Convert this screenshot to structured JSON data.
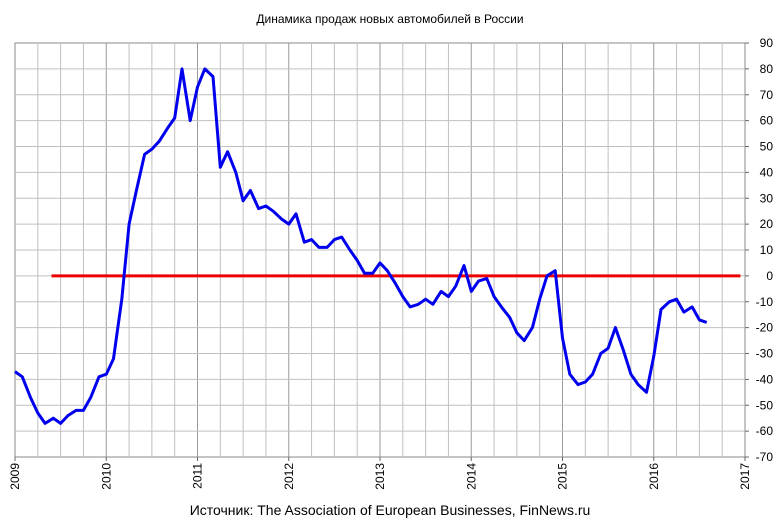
{
  "chart_data": {
    "type": "line",
    "title": "Динамика продаж новых автомобилей в России",
    "source": "Источник: The Association of European Businesses, FinNews.ru",
    "xlim": [
      2009,
      2017
    ],
    "ylim": [
      -70,
      90
    ],
    "x_ticks": [
      "2009",
      "2010",
      "2011",
      "2012",
      "2013",
      "2014",
      "2015",
      "2016",
      "2017"
    ],
    "y_ticks": [
      "90",
      "80",
      "70",
      "60",
      "50",
      "40",
      "30",
      "20",
      "10",
      "0",
      "-10",
      "-20",
      "-30",
      "-40",
      "-50",
      "-60",
      "-70"
    ],
    "y_axis_side": "right",
    "grid": true,
    "colors": {
      "series": "#0000ee",
      "reference": "#ee0000",
      "grid": "#c0c0c0"
    },
    "series": [
      {
        "x": [
          2009.0,
          2009.08,
          2009.17,
          2009.25,
          2009.33,
          2009.42,
          2009.5,
          2009.58,
          2009.67,
          2009.75,
          2009.83,
          2009.92,
          2010.0,
          2010.08,
          2010.17,
          2010.25,
          2010.33,
          2010.42,
          2010.5,
          2010.58,
          2010.67,
          2010.75,
          2010.83,
          2010.92,
          2011.0,
          2011.08,
          2011.17,
          2011.25,
          2011.33,
          2011.42,
          2011.5,
          2011.58,
          2011.67,
          2011.75,
          2011.83,
          2011.92,
          2012.0,
          2012.08,
          2012.17,
          2012.25,
          2012.33,
          2012.42,
          2012.5,
          2012.58,
          2012.67,
          2012.75,
          2012.83,
          2012.92,
          2013.0,
          2013.08,
          2013.17,
          2013.25,
          2013.33,
          2013.42,
          2013.5,
          2013.58,
          2013.67,
          2013.75,
          2013.83,
          2013.92,
          2014.0,
          2014.08,
          2014.17,
          2014.25,
          2014.33,
          2014.42,
          2014.5,
          2014.58,
          2014.67,
          2014.75,
          2014.83,
          2014.92,
          2015.0,
          2015.08,
          2015.17,
          2015.25,
          2015.33,
          2015.42,
          2015.5,
          2015.58,
          2015.67,
          2015.75,
          2015.83,
          2015.92,
          2016.0,
          2016.08,
          2016.17,
          2016.25,
          2016.33,
          2016.42,
          2016.5,
          2016.58
        ],
        "values": [
          -37,
          -39,
          -47,
          -53,
          -57,
          -55,
          -57,
          -54,
          -52,
          -52,
          -47,
          -39,
          -38,
          -32,
          -9,
          20,
          33,
          47,
          49,
          52,
          57,
          61,
          80,
          60,
          73,
          80,
          77,
          42,
          48,
          40,
          29,
          33,
          26,
          27,
          25,
          22,
          20,
          24,
          13,
          14,
          11,
          11,
          14,
          15,
          10,
          6,
          1,
          1,
          5,
          2,
          -3,
          -8,
          -12,
          -11,
          -9,
          -11,
          -6,
          -8,
          -4,
          4,
          -6,
          -2,
          -1,
          -8,
          -12,
          -16,
          -22,
          -25,
          -20,
          -9,
          0,
          2,
          -24,
          -38,
          -42,
          -41,
          -38,
          -30,
          -28,
          -20,
          -29,
          -38,
          -42,
          -45,
          -31,
          -13,
          -10,
          -9,
          -14,
          -12,
          -17,
          -18
        ]
      }
    ],
    "reference_line": {
      "y": 0,
      "x_range": [
        2009.4,
        2016.95
      ]
    }
  }
}
